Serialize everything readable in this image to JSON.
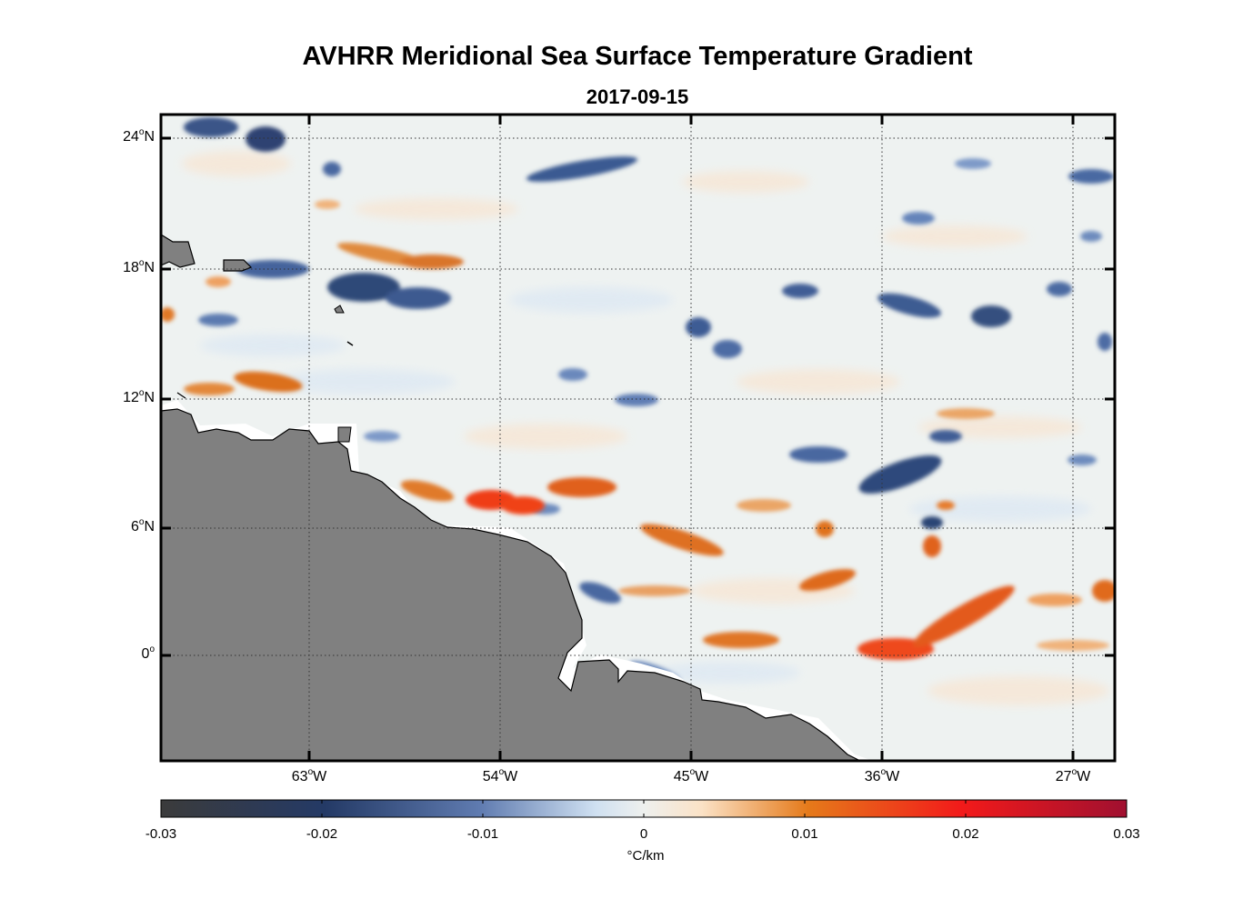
{
  "map": {
    "title": "AVHRR Meridional Sea Surface Temperature Gradient",
    "date": "2017-09-15",
    "lat_labels": [
      {
        "deg": "24",
        "hemi": "N"
      },
      {
        "deg": "18",
        "hemi": "N"
      },
      {
        "deg": "12",
        "hemi": "N"
      },
      {
        "deg": "6",
        "hemi": "N"
      },
      {
        "deg": "0",
        "hemi": ""
      }
    ],
    "lon_labels": [
      {
        "deg": "63",
        "hemi": "W"
      },
      {
        "deg": "54",
        "hemi": "W"
      },
      {
        "deg": "45",
        "hemi": "W"
      },
      {
        "deg": "36",
        "hemi": "W"
      },
      {
        "deg": "27",
        "hemi": "W"
      }
    ],
    "land_color": "#808080",
    "grid": "dotted"
  },
  "colorbar": {
    "ticks": [
      "-0.03",
      "-0.02",
      "-0.01",
      "0",
      "0.01",
      "0.02",
      "0.03"
    ],
    "unit": "°C/km",
    "colors": [
      "#3b3b3b",
      "#243a66",
      "#5f7bb0",
      "#e9f1f9",
      "#fbe2c6",
      "#e57a1a",
      "#f21a1a",
      "#a01030"
    ]
  }
}
